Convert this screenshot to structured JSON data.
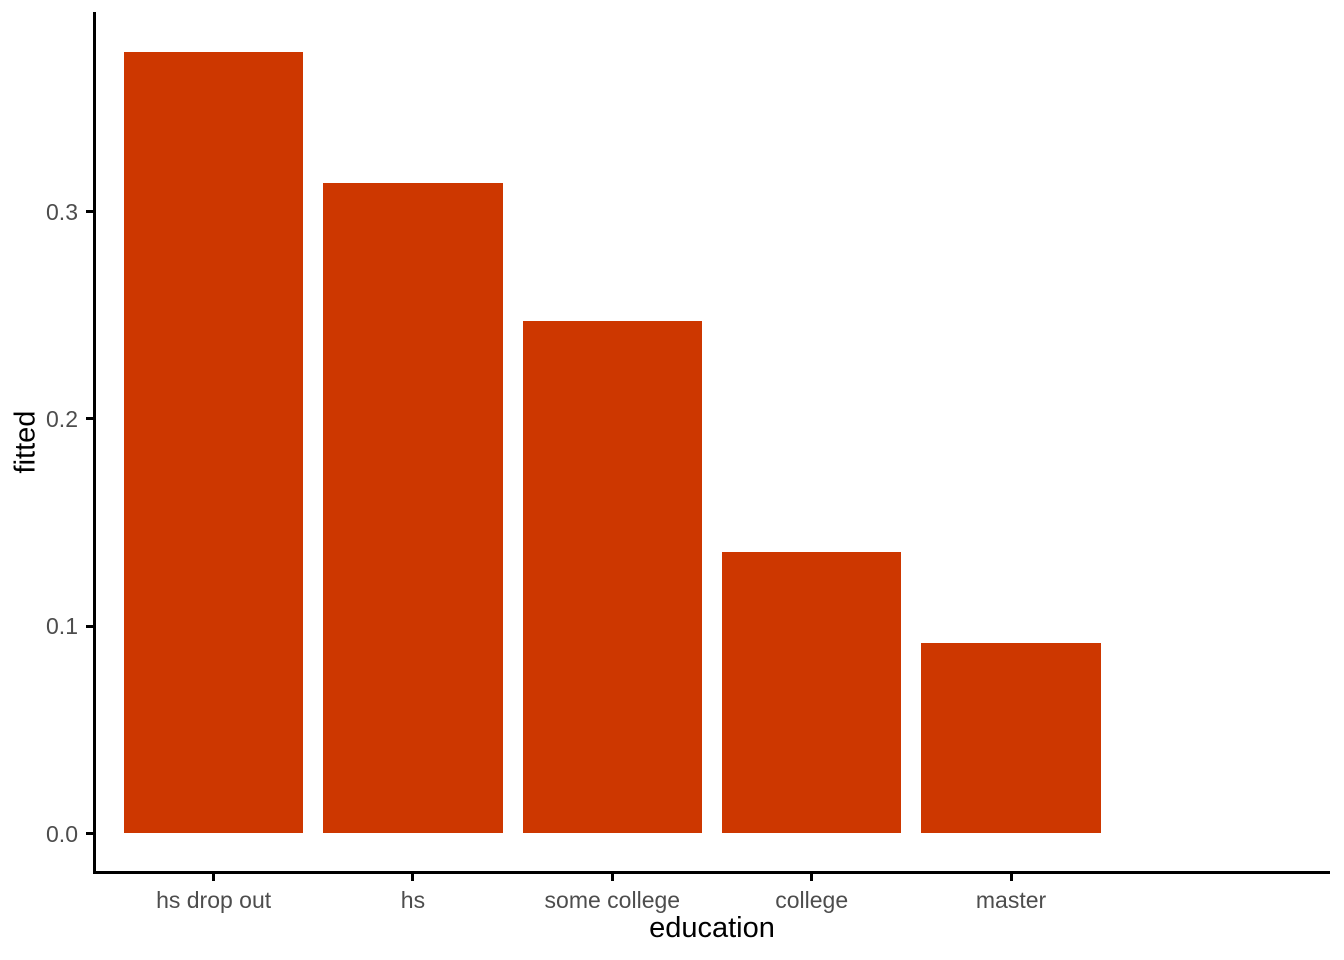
{
  "chart_data": {
    "type": "bar",
    "title": "",
    "xlabel": "education",
    "ylabel": "fitted",
    "categories": [
      "hs drop out",
      "hs",
      "some college",
      "college",
      "master"
    ],
    "values": [
      0.377,
      0.314,
      0.247,
      0.136,
      0.092
    ],
    "y_ticks": [
      0.0,
      0.1,
      0.2,
      0.3
    ],
    "y_tick_labels": [
      "0.0",
      "0.1",
      "0.2",
      "0.3"
    ],
    "ylim": [
      -0.019,
      0.396
    ],
    "grid": false,
    "legend": false,
    "bar_color": "#CD3700",
    "axis_line_color": "#000000",
    "tick_label_color": "#4D4D4D",
    "axis_title_color": "#000000",
    "background_color": "#FFFFFF"
  }
}
